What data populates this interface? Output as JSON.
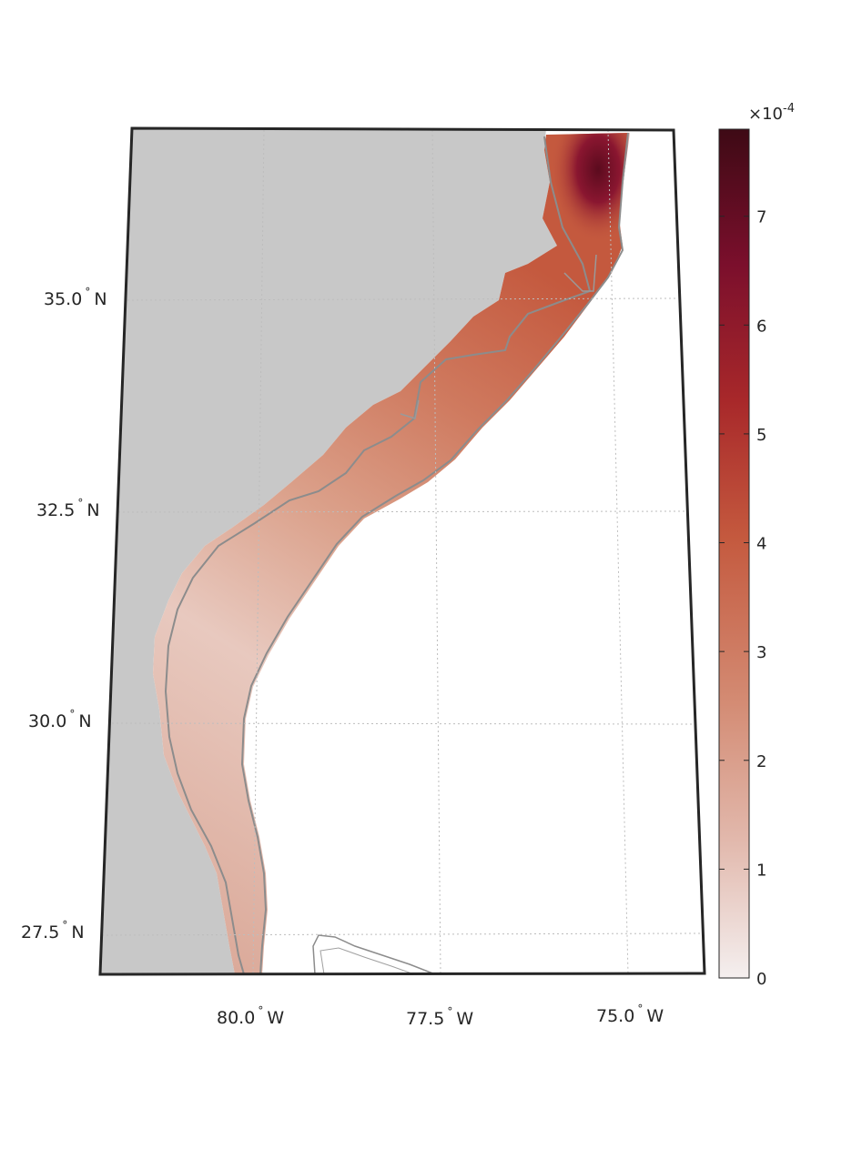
{
  "map": {
    "lat_labels": [
      {
        "value": 35.0,
        "label": "35.0",
        "deg": "°",
        "hemi": "N"
      },
      {
        "value": 32.5,
        "label": "32.5",
        "deg": "°",
        "hemi": "N"
      },
      {
        "value": 30.0,
        "label": "30.0",
        "deg": "°",
        "hemi": "N"
      },
      {
        "value": 27.5,
        "label": "27.5",
        "deg": "°",
        "hemi": "N"
      }
    ],
    "lon_labels": [
      {
        "value": -80.0,
        "label": "80.0",
        "deg": "°",
        "hemi": "W"
      },
      {
        "value": -77.5,
        "label": "77.5",
        "deg": "°",
        "hemi": "W"
      },
      {
        "value": -75.0,
        "label": "75.0",
        "deg": "°",
        "hemi": "W"
      }
    ],
    "land_color": "#c8c8c8",
    "ocean_color": "#ffffff",
    "contour_color": "#8c8c8c",
    "frame_color": "#262626"
  },
  "colorbar": {
    "exponent_prefix": "×10",
    "exponent": "-4",
    "ticks": [
      "0",
      "1",
      "2",
      "3",
      "4",
      "5",
      "6",
      "7"
    ],
    "tick_values": [
      0,
      1,
      2,
      3,
      4,
      5,
      6,
      7
    ],
    "max_value": 7.8,
    "colormap": [
      "#f4efef",
      "#e2b9ad",
      "#d38a72",
      "#c4593e",
      "#a8282a",
      "#7b0f2c",
      "#3e0a15"
    ]
  }
}
